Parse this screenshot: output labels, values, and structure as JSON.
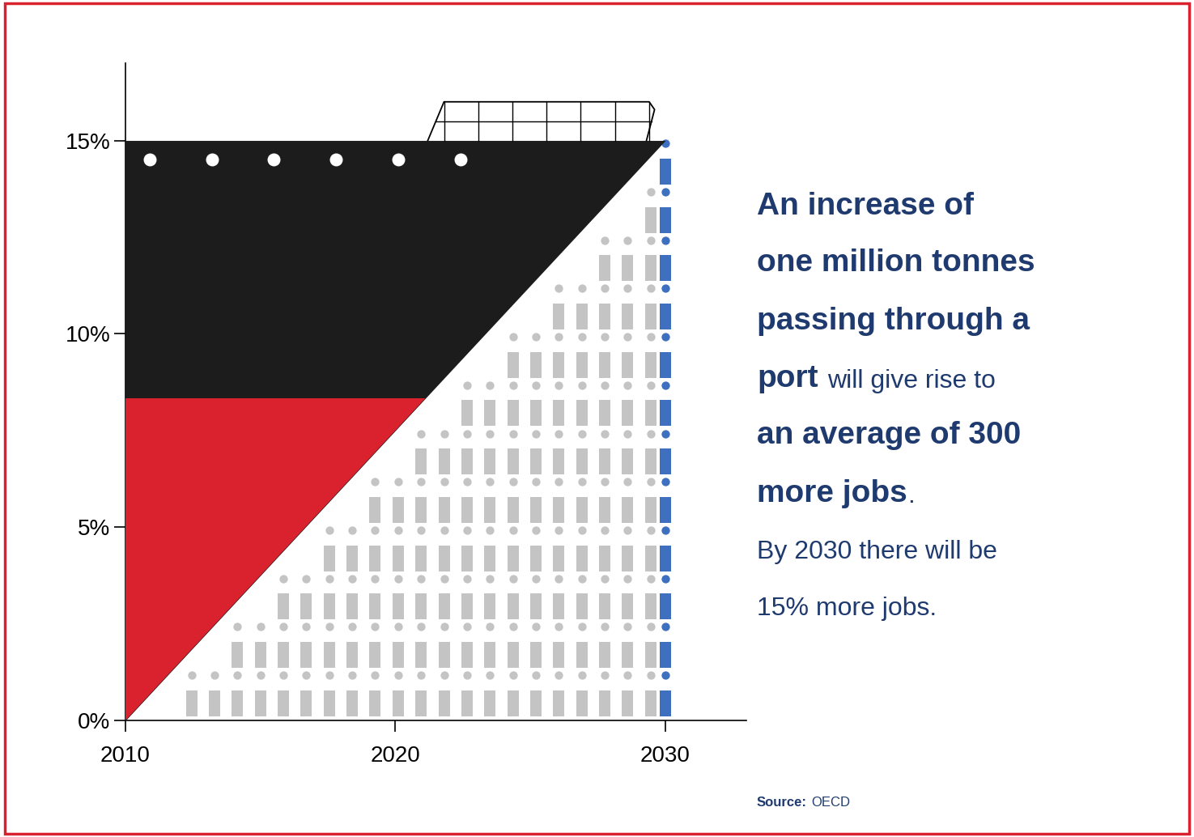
{
  "chart_data": {
    "type": "area",
    "x": [
      2010,
      2030
    ],
    "values": [
      0,
      15
    ],
    "color": "#1c1c1c",
    "xlim": [
      2010,
      2033
    ],
    "xticks": [
      2010,
      2020,
      2030
    ],
    "ylim": [
      0,
      17
    ],
    "yticks": [
      {
        "value": 0,
        "label": "0%"
      },
      {
        "value": 5,
        "label": "5%"
      },
      {
        "value": 10,
        "label": "10%"
      },
      {
        "value": 15,
        "label": "15%"
      }
    ],
    "annotation": [
      [
        "An increase of"
      ],
      [
        "one million tonnes"
      ],
      [
        "passing through a"
      ],
      [
        "port",
        "will give rise to"
      ],
      [
        "an average of 300"
      ],
      [
        "more jobs",
        "."
      ],
      [
        "By 2030 there will be"
      ],
      [
        "15% more jobs."
      ]
    ],
    "source": [
      "Source:",
      "OECD"
    ]
  }
}
